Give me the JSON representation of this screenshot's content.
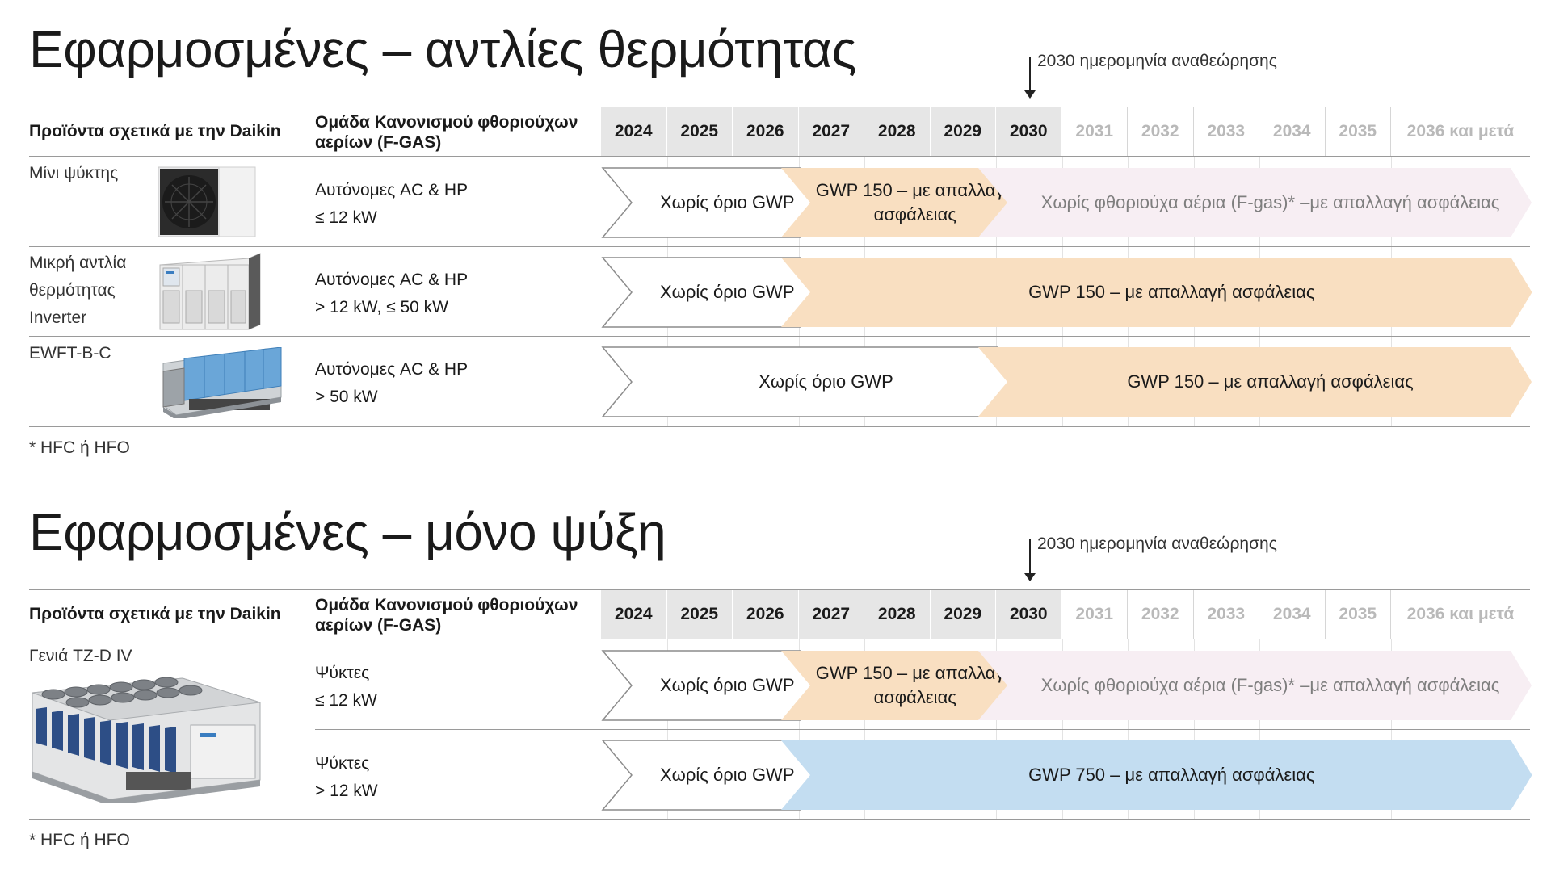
{
  "colors": {
    "white_bar_stroke": "#8c8c8c",
    "gwp150_fill": "#f9dfc1",
    "nofgas_fill": "#f7eef3",
    "gwp750_fill": "#c3ddf1",
    "header_active": "#e6e6e6",
    "grid": "#9a9a9a"
  },
  "icons": {
    "unit_mini": "mini-chiller-unit-icon",
    "unit_inverter": "inverter-heat-pump-unit-icon",
    "unit_ewft": "ewft-chiller-unit-icon",
    "unit_tzd": "tzd-chiller-unit-icon"
  },
  "review": {
    "label": "2030 ημερομηνία αναθεώρησης",
    "year": "2030"
  },
  "columns": {
    "product": "Προϊόντα σχετικά με την Daikin",
    "group": "Ομάδα Κανονισμού φθοριούχων αερίων (F-GAS)",
    "years": [
      "2024",
      "2025",
      "2026",
      "2027",
      "2028",
      "2029",
      "2030",
      "2031",
      "2032",
      "2033",
      "2034",
      "2035",
      "2036 και μετά"
    ],
    "active_through": "2030"
  },
  "section1": {
    "title": "Εφαρμοσμένες – αντλίες θερμότητας",
    "footnote": "* HFC ή HFO",
    "rows": [
      {
        "product": "Μίνι ψύκτης",
        "group_line1": "Αυτόνομες AC & HP",
        "group_line2": "≤ 12 kW",
        "bars": [
          {
            "label": "Χωρίς όριο GWP",
            "style": "white",
            "from": "2024",
            "to": "2026"
          },
          {
            "label": "GWP 150 – με απαλλαγή ασφάλειας",
            "style": "gwp150",
            "from": "2027",
            "to": "2029"
          },
          {
            "label": "Χωρίς φθοριούχα αέρια (F-gas)* – με απαλλαγή ασφάλειας",
            "style": "nofgas",
            "from": "2030",
            "to": "2036 και μετά"
          }
        ]
      },
      {
        "product": "Μικρή αντλία θερμότητας Inverter",
        "group_line1": "Αυτόνομες AC & HP",
        "group_line2": "> 12 kW, ≤ 50 kW",
        "bars": [
          {
            "label": "Χωρίς όριο GWP",
            "style": "white",
            "from": "2024",
            "to": "2026"
          },
          {
            "label": "GWP 150 – με απαλλαγή ασφάλειας",
            "style": "gwp150",
            "from": "2027",
            "to": "2036 και μετά"
          }
        ]
      },
      {
        "product": "EWFT-B-C",
        "group_line1": "Αυτόνομες AC & HP",
        "group_line2": "> 50 kW",
        "bars": [
          {
            "label": "Χωρίς όριο GWP",
            "style": "white",
            "from": "2024",
            "to": "2029"
          },
          {
            "label": "GWP 150 – με απαλλαγή ασφάλειας",
            "style": "gwp150",
            "from": "2030",
            "to": "2036 και μετά"
          }
        ]
      }
    ]
  },
  "section2": {
    "title": "Εφαρμοσμένες – μόνο ψύξη",
    "footnote": "* HFC ή HFO",
    "product": "Γενιά TZ-D IV",
    "rows": [
      {
        "group_line1": "Ψύκτες",
        "group_line2": "≤ 12 kW",
        "bars": [
          {
            "label": "Χωρίς όριο GWP",
            "style": "white",
            "from": "2024",
            "to": "2026"
          },
          {
            "label": "GWP 150 – με απαλλαγή ασφάλειας",
            "style": "gwp150",
            "from": "2027",
            "to": "2029"
          },
          {
            "label": "Χωρίς φθοριούχα αέρια (F-gas)* – με απαλλαγή ασφάλειας",
            "style": "nofgas",
            "from": "2030",
            "to": "2036 και μετά"
          }
        ]
      },
      {
        "group_line1": "Ψύκτες",
        "group_line2": "> 12 kW",
        "bars": [
          {
            "label": "Χωρίς όριο GWP",
            "style": "white",
            "from": "2024",
            "to": "2026"
          },
          {
            "label": "GWP 750 – με απαλλαγή ασφάλειας",
            "style": "gwp750",
            "from": "2027",
            "to": "2036 και μετά"
          }
        ]
      }
    ]
  }
}
